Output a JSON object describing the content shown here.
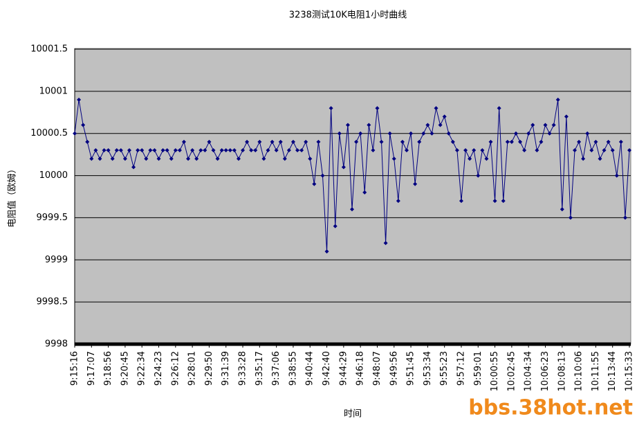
{
  "chart_data": {
    "type": "line",
    "title": "3238测试10K电阻1小时曲线",
    "x_label": "时间",
    "y_label": "电阻值（欧姆）",
    "watermark": "bbs.38hot.net",
    "categories": [
      "9:15:16",
      null,
      null,
      null,
      "9:17:07",
      null,
      null,
      null,
      "9:18:56",
      null,
      null,
      null,
      "9:20:45",
      null,
      null,
      null,
      "9:22:34",
      null,
      null,
      null,
      "9:24:23",
      null,
      null,
      null,
      "9:26:12",
      null,
      null,
      null,
      "9:28:01",
      null,
      null,
      null,
      "9:29:50",
      null,
      null,
      null,
      "9:31:39",
      null,
      null,
      null,
      "9:33:28",
      null,
      null,
      null,
      "9:35:17",
      null,
      null,
      null,
      "9:37:06",
      null,
      null,
      null,
      "9:38:55",
      null,
      null,
      null,
      "9:40:44",
      null,
      null,
      null,
      "9:42:40",
      null,
      null,
      null,
      "9:44:29",
      null,
      null,
      null,
      "9:46:18",
      null,
      null,
      null,
      "9:48:07",
      null,
      null,
      null,
      "9:49:56",
      null,
      null,
      null,
      "9:51:45",
      null,
      null,
      null,
      "9:53:34",
      null,
      null,
      null,
      "9:55:23",
      null,
      null,
      null,
      "9:57:12",
      null,
      null,
      null,
      "9:59:01",
      null,
      null,
      null,
      "10:00:55",
      null,
      null,
      null,
      "10:02:45",
      null,
      null,
      null,
      "10:04:34",
      null,
      null,
      null,
      "10:06:23",
      null,
      null,
      null,
      "10:08:13",
      null,
      null,
      null,
      "10:10:06",
      null,
      null,
      null,
      "10:11:55",
      null,
      null,
      null,
      "10:13:44",
      null,
      null,
      null,
      "10:15:33"
    ],
    "values": [
      10000.5,
      10000.9,
      10000.6,
      10000.4,
      10000.2,
      10000.3,
      10000.2,
      10000.3,
      10000.3,
      10000.2,
      10000.3,
      10000.3,
      10000.2,
      10000.3,
      10000.1,
      10000.3,
      10000.3,
      10000.2,
      10000.3,
      10000.3,
      10000.2,
      10000.3,
      10000.3,
      10000.2,
      10000.3,
      10000.3,
      10000.4,
      10000.2,
      10000.3,
      10000.2,
      10000.3,
      10000.3,
      10000.4,
      10000.3,
      10000.2,
      10000.3,
      10000.3,
      10000.3,
      10000.3,
      10000.2,
      10000.3,
      10000.4,
      10000.3,
      10000.3,
      10000.4,
      10000.2,
      10000.3,
      10000.4,
      10000.3,
      10000.4,
      10000.2,
      10000.3,
      10000.4,
      10000.3,
      10000.3,
      10000.4,
      10000.2,
      9999.9,
      10000.4,
      10000.0,
      9999.1,
      10000.8,
      9999.4,
      10000.5,
      10000.1,
      10000.6,
      9999.6,
      10000.4,
      10000.5,
      9999.8,
      10000.6,
      10000.3,
      10000.8,
      10000.4,
      9999.2,
      10000.5,
      10000.2,
      9999.7,
      10000.4,
      10000.3,
      10000.5,
      9999.9,
      10000.4,
      10000.5,
      10000.6,
      10000.5,
      10000.8,
      10000.6,
      10000.7,
      10000.5,
      10000.4,
      10000.3,
      9999.7,
      10000.3,
      10000.2,
      10000.3,
      10000.0,
      10000.3,
      10000.2,
      10000.4,
      9999.7,
      10000.8,
      9999.7,
      10000.4,
      10000.4,
      10000.5,
      10000.4,
      10000.3,
      10000.5,
      10000.6,
      10000.3,
      10000.4,
      10000.6,
      10000.5,
      10000.6,
      10000.9,
      9999.6,
      10000.7,
      9999.5,
      10000.3,
      10000.4,
      10000.2,
      10000.5,
      10000.3,
      10000.4,
      10000.2,
      10000.3,
      10000.4,
      10000.3,
      10000.0,
      10000.4,
      9999.5,
      10000.3
    ],
    "color": "#000080",
    "ylim": [
      9998,
      10001.5
    ],
    "yticks": [
      9998,
      9998.5,
      9999,
      9999.5,
      10000,
      10000.5,
      10001,
      10001.5
    ],
    "grid": true
  }
}
